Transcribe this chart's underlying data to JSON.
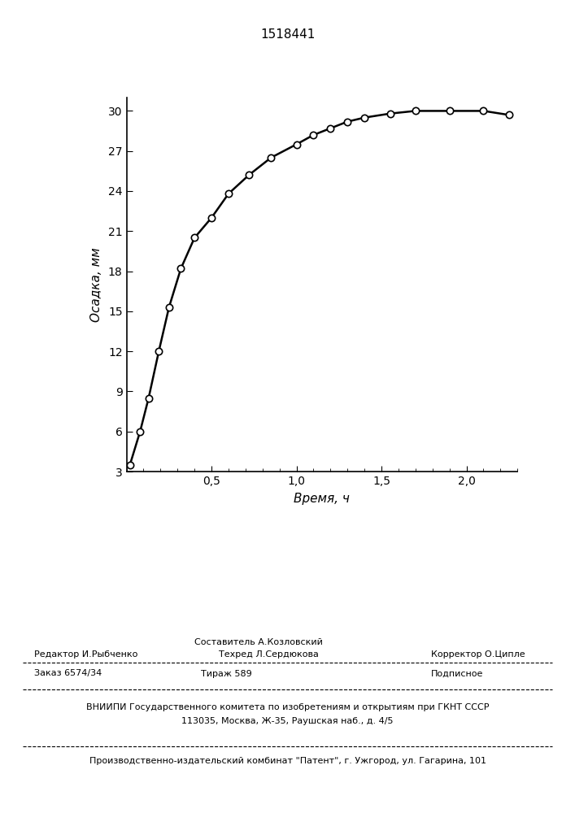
{
  "patent_number": "1518441",
  "xlabel": "Время, ч",
  "ylabel": "Осадка, мм",
  "xlim": [
    0,
    2.3
  ],
  "ylim": [
    3,
    31
  ],
  "yticks": [
    3,
    6,
    9,
    12,
    15,
    18,
    21,
    24,
    27,
    30
  ],
  "ytick_labels": [
    "3",
    "6",
    "9",
    "12",
    "15",
    "18",
    "21",
    "24",
    "27",
    "30"
  ],
  "data_x": [
    0.02,
    0.08,
    0.13,
    0.19,
    0.25,
    0.32,
    0.4,
    0.5,
    0.6,
    0.72,
    0.85,
    1.0,
    1.1,
    1.2,
    1.3,
    1.4,
    1.55,
    1.7,
    1.9,
    2.1,
    2.25
  ],
  "data_y": [
    3.5,
    6.0,
    8.5,
    12.0,
    15.3,
    18.2,
    20.5,
    22.0,
    23.8,
    25.2,
    26.5,
    27.5,
    28.2,
    28.7,
    29.2,
    29.5,
    29.8,
    30.0,
    30.0,
    30.0,
    29.7
  ],
  "line_color": "#000000",
  "marker_color": "#ffffff",
  "marker_edge_color": "#000000",
  "marker_size": 6,
  "line_width": 1.8,
  "background_color": "#ffffff",
  "footer_sestavitel": "Составитель А.Козловский",
  "footer_redaktor": "Редактор И.Рыбченко",
  "footer_tehred": "Техред Л.Сердюкова",
  "footer_korrektor": "Корректор О.Ципле",
  "footer_order": "Заказ 6574/34",
  "footer_tirazh": "Тираж 589",
  "footer_podpisnoe": "Подписное",
  "footer_vniipii": "ВНИИПИ Государственного комитета по изобретениям и открытиям при ГКНТ СССР",
  "footer_address": "113035, Москва, Ж-35, Раушская наб., д. 4/5",
  "footer_kombinat": "Производственно-издательский комбинат \"Патент\", г. Ужгород, ул. Гагарина, 101"
}
